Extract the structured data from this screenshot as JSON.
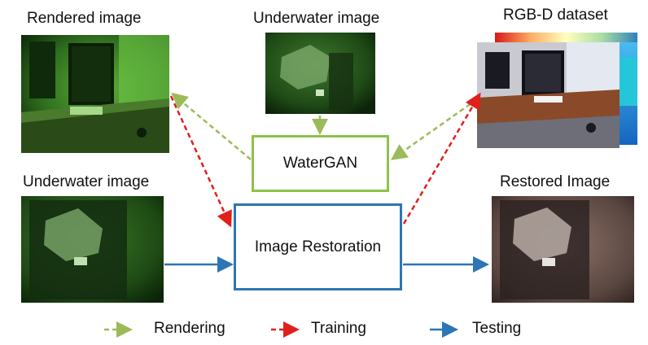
{
  "labels": {
    "rendered_image": "Rendered image",
    "underwater_image_top": "Underwater image",
    "rgbd_dataset": "RGB-D dataset",
    "underwater_image_left": "Underwater image",
    "restored_image": "Restored Image"
  },
  "boxes": {
    "watergan": "WaterGAN",
    "image_restoration": "Image Restoration"
  },
  "legend": [
    {
      "name": "Rendering",
      "style": "dashed",
      "color": "#9bbb59"
    },
    {
      "name": "Training",
      "style": "dashed",
      "color": "#e0201b"
    },
    {
      "name": "Testing",
      "style": "solid",
      "color": "#2e75b6"
    }
  ],
  "colors": {
    "rendering_arrow": "#9bbb59",
    "training_arrow": "#e0201b",
    "testing_arrow": "#2e75b6",
    "watergan_border": "#8bc34a",
    "restoration_border": "#2e75b6"
  }
}
